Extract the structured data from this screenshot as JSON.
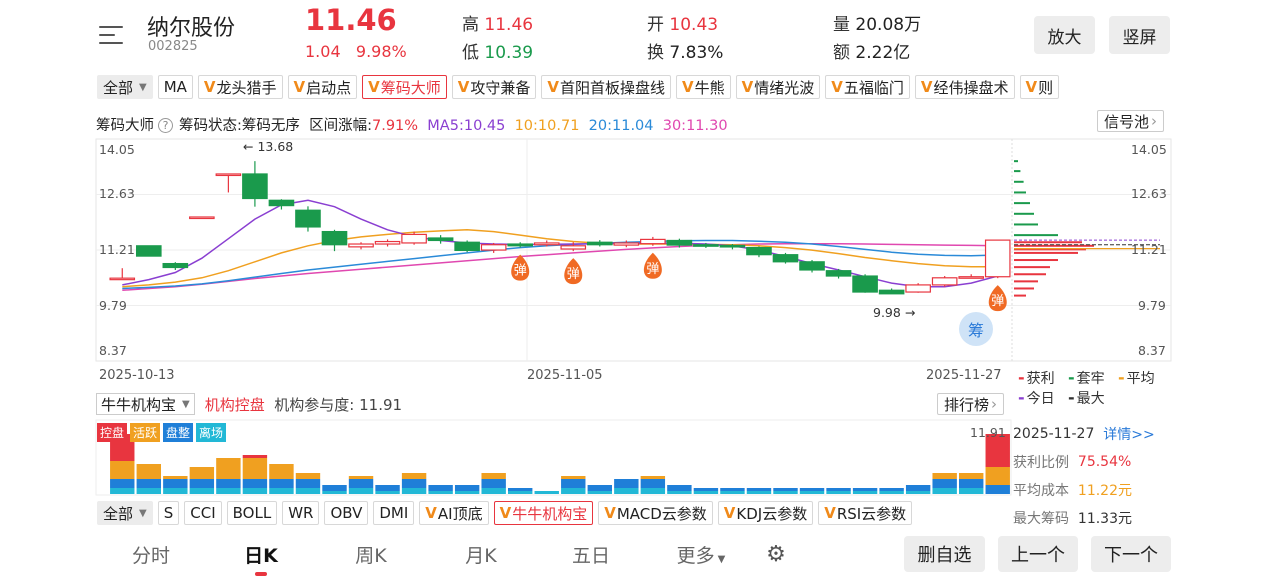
{
  "header": {
    "name": "纳尔股份",
    "code": "002825",
    "price": "11.46",
    "change": "1.04",
    "change_pct": "9.98%",
    "high_label": "高",
    "high": "11.46",
    "low_label": "低",
    "low": "10.39",
    "open_label": "开",
    "open": "10.43",
    "turnover_label": "换",
    "turnover": "7.83%",
    "volume_label": "量",
    "volume": "20.08万",
    "amount_label": "额",
    "amount": "2.22亿",
    "zoom_button": "放大",
    "portrait_button": "竖屏"
  },
  "indicators_top": {
    "all_label": "全部",
    "items": [
      "MA",
      "龙头猎手",
      "启动点",
      "筹码大师",
      "攻守兼备",
      "首阳首板操盘线",
      "牛熊",
      "情绪光波",
      "五福临门",
      "经伟操盘术",
      "则"
    ],
    "vip": [
      false,
      true,
      true,
      true,
      true,
      true,
      true,
      true,
      true,
      true,
      true
    ],
    "active_index": 3
  },
  "info_line": {
    "name": "筹码大师",
    "status": "筹码状态:筹码无序",
    "range": "区间涨幅:",
    "range_val": "7.91%",
    "ma5": "MA5:10.45",
    "ma10": "10:10.71",
    "ma20": "20:11.04",
    "ma30": "30:11.30",
    "signal_pool": "信号池",
    "colors": {
      "ma5": "#8a3fd1",
      "ma10": "#f0a020",
      "ma20": "#2a8ad8",
      "ma30": "#e048b0"
    }
  },
  "price_axis": {
    "left": [
      "14.05",
      "12.63",
      "11.21",
      "9.79",
      "8.37"
    ],
    "right": [
      "14.05",
      "12.63",
      "11.21",
      "9.79",
      "8.37"
    ]
  },
  "annotations": {
    "max": "13.68",
    "min": "9.98",
    "rebound": "弹",
    "chip": "筹"
  },
  "dates": [
    "2025-10-13",
    "2025-11-05",
    "2025-11-27"
  ],
  "legend": {
    "profit": "获利",
    "trapped": "套牢",
    "average": "平均",
    "today": "今日",
    "max": "最大",
    "colors": {
      "profit": "#e8353f",
      "trapped": "#1a9a4c",
      "average": "#f0a020",
      "today": "#8a3fd1",
      "max": "#333333"
    }
  },
  "institution": {
    "select": "牛牛机构宝",
    "title": "机构控盘",
    "participation": "机构参与度: 11.91",
    "rank_button": "排行榜",
    "max_value": "11.91",
    "tags": [
      "控盘",
      "活跃",
      "盘整",
      "离场"
    ],
    "tag_colors": [
      "#e8353f",
      "#f0a020",
      "#1f7fd8",
      "#22b8d6"
    ]
  },
  "chip_panel": {
    "date": "2025-11-27",
    "detail": "详情>>",
    "profit_ratio_label": "获利比例",
    "profit_ratio": "75.54%",
    "avg_cost_label": "平均成本",
    "avg_cost": "11.22元",
    "max_chip_label": "最大筹码",
    "max_chip": "11.33元"
  },
  "indicators_bottom": {
    "all_label": "全部",
    "items": [
      "S",
      "CCI",
      "BOLL",
      "WR",
      "OBV",
      "DMI",
      "AI顶底",
      "牛牛机构宝",
      "MACD云参数",
      "KDJ云参数",
      "RSI云参数"
    ],
    "vip": [
      false,
      false,
      false,
      false,
      false,
      false,
      true,
      true,
      true,
      true,
      true
    ],
    "active_index": 7
  },
  "bottom_tabs": {
    "tabs": [
      "分时",
      "日K",
      "周K",
      "月K",
      "五日",
      "更多"
    ],
    "active_index": 1,
    "delete_button": "删自选",
    "prev_button": "上一个",
    "next_button": "下一个"
  },
  "chart_data": {
    "type": "candlestick",
    "x_start": "2025-10-13",
    "x_end": "2025-11-27",
    "ylim": [
      8.37,
      14.05
    ],
    "candles": [
      [
        10.39,
        10.39,
        10.67,
        10.39
      ],
      [
        11.3,
        11.01,
        11.3,
        11.01
      ],
      [
        10.8,
        10.69,
        10.84,
        10.62
      ],
      [
        12.11,
        12.11,
        12.11,
        12.11
      ],
      [
        13.32,
        13.32,
        13.32,
        12.8
      ],
      [
        13.32,
        12.63,
        13.68,
        12.4
      ],
      [
        12.58,
        12.43,
        12.61,
        12.32
      ],
      [
        12.3,
        11.83,
        12.41,
        11.7
      ],
      [
        11.7,
        11.33,
        11.75,
        11.15
      ],
      [
        11.27,
        11.35,
        11.4,
        11.2
      ],
      [
        11.35,
        11.42,
        11.48,
        11.28
      ],
      [
        11.38,
        11.62,
        11.7,
        11.33
      ],
      [
        11.52,
        11.45,
        11.6,
        11.36
      ],
      [
        11.4,
        11.17,
        11.45,
        11.12
      ],
      [
        11.18,
        11.33,
        11.38,
        11.1
      ],
      [
        11.35,
        11.3,
        11.4,
        11.25
      ],
      [
        11.33,
        11.38,
        11.45,
        11.28
      ],
      [
        11.21,
        11.3,
        11.4,
        11.15
      ],
      [
        11.4,
        11.33,
        11.46,
        11.28
      ],
      [
        11.32,
        11.38,
        11.45,
        11.26
      ],
      [
        11.36,
        11.48,
        11.55,
        11.3
      ],
      [
        11.45,
        11.32,
        11.5,
        11.25
      ],
      [
        11.33,
        11.3,
        11.38,
        11.24
      ],
      [
        11.31,
        11.28,
        11.35,
        11.2
      ],
      [
        11.25,
        11.05,
        11.28,
        10.98
      ],
      [
        11.05,
        10.85,
        11.1,
        10.8
      ],
      [
        10.85,
        10.62,
        10.9,
        10.55
      ],
      [
        10.6,
        10.45,
        10.65,
        10.38
      ],
      [
        10.45,
        10.0,
        10.5,
        9.98
      ],
      [
        10.05,
        9.95,
        10.1,
        9.98
      ],
      [
        10.0,
        10.2,
        10.25,
        9.98
      ],
      [
        10.2,
        10.4,
        10.45,
        10.15
      ],
      [
        10.43,
        10.43,
        10.5,
        10.39
      ],
      [
        10.43,
        11.46,
        11.46,
        10.39
      ]
    ],
    "ma5": [
      10.2,
      10.35,
      10.55,
      10.95,
      11.5,
      12.05,
      12.45,
      12.58,
      12.4,
      12.05,
      11.75,
      11.55,
      11.45,
      11.38,
      11.35,
      11.34,
      11.34,
      11.35,
      11.36,
      11.37,
      11.38,
      11.37,
      11.35,
      11.3,
      11.18,
      11.0,
      10.8,
      10.62,
      10.43,
      10.25,
      10.15,
      10.15,
      10.25,
      10.45
    ],
    "ma10": [
      10.15,
      10.2,
      10.28,
      10.4,
      10.6,
      10.85,
      11.1,
      11.3,
      11.45,
      11.55,
      11.62,
      11.68,
      11.72,
      11.75,
      11.7,
      11.6,
      11.5,
      11.42,
      11.37,
      11.35,
      11.35,
      11.35,
      11.34,
      11.33,
      11.3,
      11.25,
      11.18,
      11.08,
      10.97,
      10.88,
      10.8,
      10.74,
      10.71,
      10.71
    ],
    "ma20": [
      10.1,
      10.13,
      10.17,
      10.23,
      10.32,
      10.42,
      10.52,
      10.62,
      10.7,
      10.78,
      10.86,
      10.94,
      11.02,
      11.1,
      11.18,
      11.25,
      11.3,
      11.34,
      11.37,
      11.4,
      11.42,
      11.44,
      11.45,
      11.45,
      11.43,
      11.4,
      11.35,
      11.28,
      11.2,
      11.12,
      11.06,
      11.03,
      11.02,
      11.04
    ],
    "ma30": [
      10.05,
      10.1,
      10.15,
      10.22,
      10.3,
      10.38,
      10.45,
      10.52,
      10.58,
      10.64,
      10.7,
      10.76,
      10.82,
      10.88,
      10.94,
      11.0,
      11.05,
      11.1,
      11.15,
      11.2,
      11.24,
      11.28,
      11.31,
      11.33,
      11.35,
      11.36,
      11.36,
      11.36,
      11.35,
      11.34,
      11.33,
      11.32,
      11.31,
      11.3
    ],
    "rebound_markers": [
      15,
      17,
      20,
      33
    ],
    "chip_profile": [
      {
        "price": 13.68,
        "vol": 0.05,
        "type": "trapped"
      },
      {
        "price": 13.4,
        "vol": 0.08,
        "type": "trapped"
      },
      {
        "price": 13.1,
        "vol": 0.12,
        "type": "trapped"
      },
      {
        "price": 12.8,
        "vol": 0.15,
        "type": "trapped"
      },
      {
        "price": 12.5,
        "vol": 0.2,
        "type": "trapped"
      },
      {
        "price": 12.2,
        "vol": 0.25,
        "type": "trapped"
      },
      {
        "price": 11.9,
        "vol": 0.3,
        "type": "trapped"
      },
      {
        "price": 11.6,
        "vol": 0.55,
        "type": "trapped"
      },
      {
        "price": 11.4,
        "vol": 0.85,
        "type": "profit"
      },
      {
        "price": 11.3,
        "vol": 1.0,
        "type": "profit"
      },
      {
        "price": 11.2,
        "vol": 0.9,
        "type": "profit"
      },
      {
        "price": 11.1,
        "vol": 0.8,
        "type": "profit"
      },
      {
        "price": 10.9,
        "vol": 0.55,
        "type": "profit"
      },
      {
        "price": 10.7,
        "vol": 0.45,
        "type": "profit"
      },
      {
        "price": 10.5,
        "vol": 0.4,
        "type": "profit"
      },
      {
        "price": 10.3,
        "vol": 0.3,
        "type": "profit"
      },
      {
        "price": 10.1,
        "vol": 0.25,
        "type": "profit"
      },
      {
        "price": 9.9,
        "vol": 0.15,
        "type": "profit"
      }
    ],
    "institution_bars": [
      {
        "control": 0.45,
        "active": 0.3,
        "consolidate": 0.15,
        "exit": 0.1
      },
      {
        "control": 0.0,
        "active": 0.25,
        "consolidate": 0.15,
        "exit": 0.1
      },
      {
        "control": 0.0,
        "active": 0.05,
        "consolidate": 0.15,
        "exit": 0.1
      },
      {
        "control": 0.0,
        "active": 0.2,
        "consolidate": 0.15,
        "exit": 0.1
      },
      {
        "control": 0.0,
        "active": 0.35,
        "consolidate": 0.15,
        "exit": 0.1
      },
      {
        "control": 0.05,
        "active": 0.35,
        "consolidate": 0.15,
        "exit": 0.1
      },
      {
        "control": 0.0,
        "active": 0.25,
        "consolidate": 0.15,
        "exit": 0.1
      },
      {
        "control": 0.0,
        "active": 0.1,
        "consolidate": 0.15,
        "exit": 0.1
      },
      {
        "control": 0.0,
        "active": 0.0,
        "consolidate": 0.1,
        "exit": 0.05
      },
      {
        "control": 0.0,
        "active": 0.05,
        "consolidate": 0.15,
        "exit": 0.1
      },
      {
        "control": 0.0,
        "active": 0.0,
        "consolidate": 0.1,
        "exit": 0.05
      },
      {
        "control": 0.0,
        "active": 0.1,
        "consolidate": 0.15,
        "exit": 0.1
      },
      {
        "control": 0.0,
        "active": 0.0,
        "consolidate": 0.1,
        "exit": 0.05
      },
      {
        "control": 0.0,
        "active": 0.0,
        "consolidate": 0.1,
        "exit": 0.05
      },
      {
        "control": 0.0,
        "active": 0.1,
        "consolidate": 0.15,
        "exit": 0.1
      },
      {
        "control": 0.0,
        "active": 0.0,
        "consolidate": 0.05,
        "exit": 0.05
      },
      {
        "control": 0.0,
        "active": 0.0,
        "consolidate": 0.0,
        "exit": 0.05
      },
      {
        "control": 0.0,
        "active": 0.05,
        "consolidate": 0.15,
        "exit": 0.1
      },
      {
        "control": 0.0,
        "active": 0.0,
        "consolidate": 0.1,
        "exit": 0.05
      },
      {
        "control": 0.0,
        "active": 0.0,
        "consolidate": 0.15,
        "exit": 0.1
      },
      {
        "control": 0.0,
        "active": 0.05,
        "consolidate": 0.15,
        "exit": 0.1
      },
      {
        "control": 0.0,
        "active": 0.0,
        "consolidate": 0.1,
        "exit": 0.05
      },
      {
        "control": 0.0,
        "active": 0.0,
        "consolidate": 0.05,
        "exit": 0.05
      },
      {
        "control": 0.0,
        "active": 0.0,
        "consolidate": 0.05,
        "exit": 0.05
      },
      {
        "control": 0.0,
        "active": 0.0,
        "consolidate": 0.05,
        "exit": 0.05
      },
      {
        "control": 0.0,
        "active": 0.0,
        "consolidate": 0.05,
        "exit": 0.05
      },
      {
        "control": 0.0,
        "active": 0.0,
        "consolidate": 0.05,
        "exit": 0.05
      },
      {
        "control": 0.0,
        "active": 0.0,
        "consolidate": 0.05,
        "exit": 0.05
      },
      {
        "control": 0.0,
        "active": 0.0,
        "consolidate": 0.05,
        "exit": 0.05
      },
      {
        "control": 0.0,
        "active": 0.0,
        "consolidate": 0.05,
        "exit": 0.05
      },
      {
        "control": 0.0,
        "active": 0.0,
        "consolidate": 0.1,
        "exit": 0.05
      },
      {
        "control": 0.0,
        "active": 0.1,
        "consolidate": 0.15,
        "exit": 0.1
      },
      {
        "control": 0.0,
        "active": 0.1,
        "consolidate": 0.15,
        "exit": 0.1
      },
      {
        "control": 0.55,
        "active": 0.3,
        "consolidate": 0.15,
        "exit": 0.0
      }
    ]
  }
}
